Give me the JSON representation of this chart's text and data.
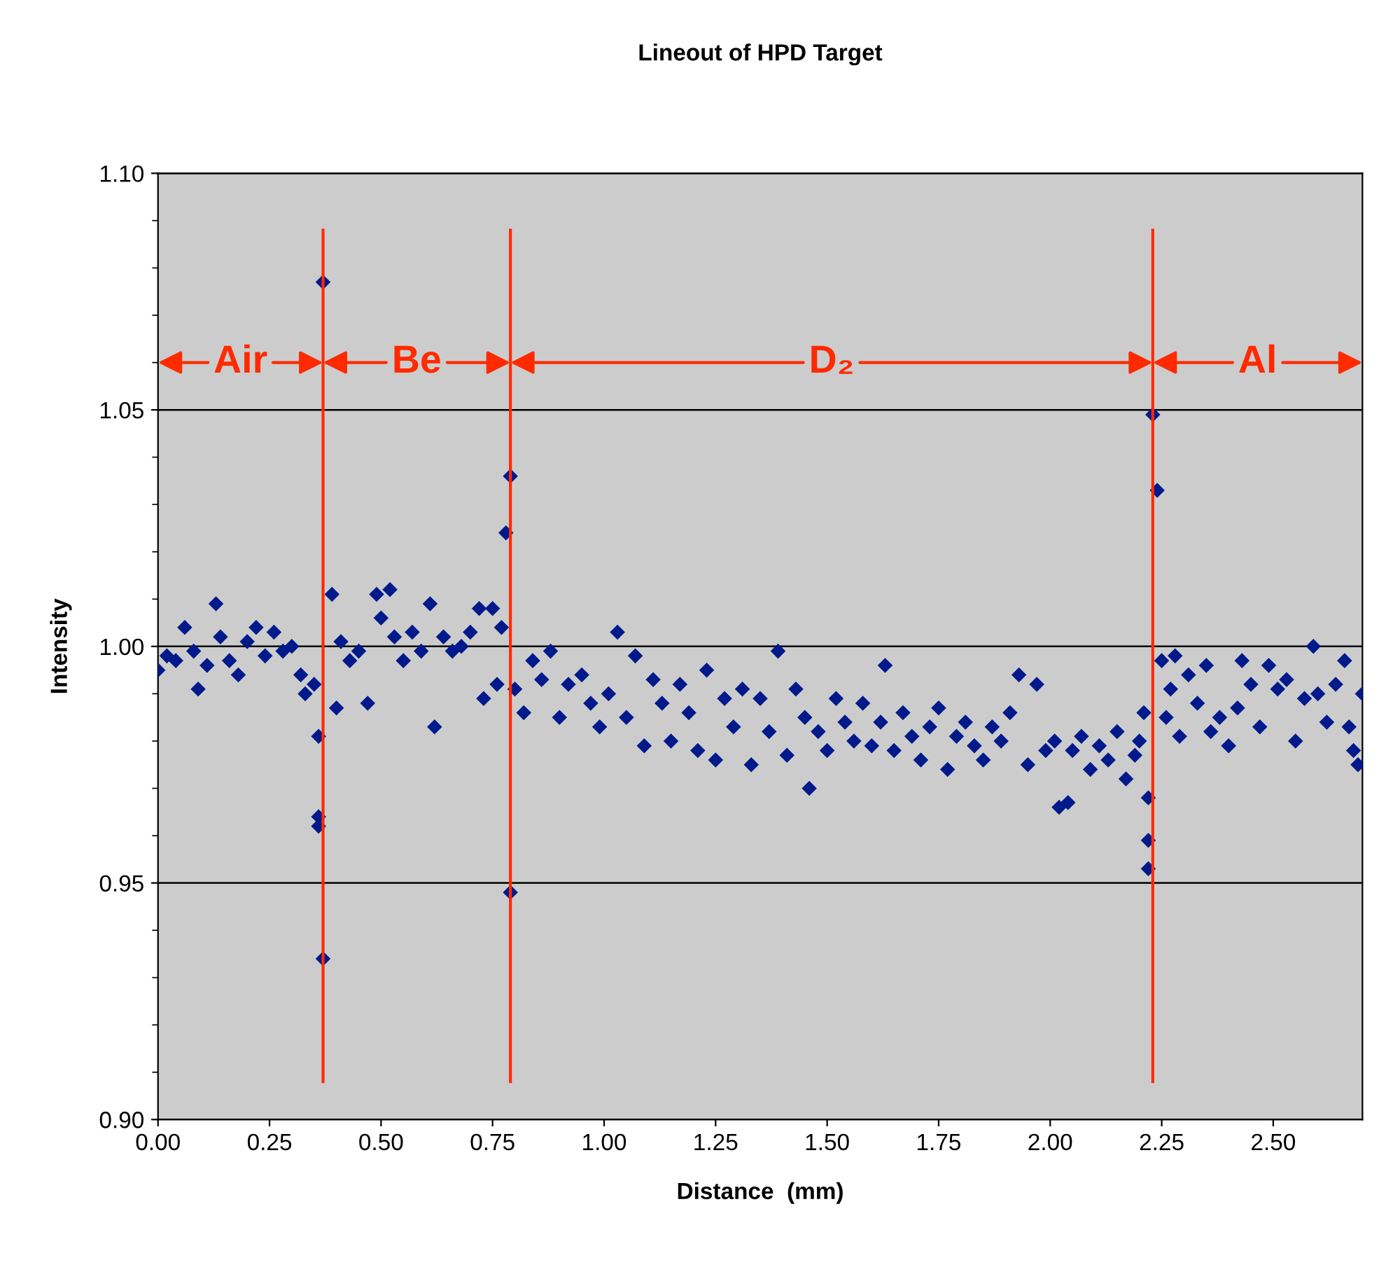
{
  "chart_data": {
    "type": "scatter",
    "title": "Lineout of HPD Target",
    "xlabel": "Distance  (mm)",
    "ylabel": "Intensity",
    "marker": "diamond",
    "grid": "y",
    "xlim": [
      0,
      2.7
    ],
    "xticks": [
      {
        "value": 0,
        "label": "0.00"
      },
      {
        "value": 0.25,
        "label": "0.25"
      },
      {
        "value": 0.5,
        "label": "0.50"
      },
      {
        "value": 0.75,
        "label": "0.75"
      },
      {
        "value": 1.0,
        "label": "1.00"
      },
      {
        "value": 1.25,
        "label": "1.25"
      },
      {
        "value": 1.5,
        "label": "1.50"
      },
      {
        "value": 1.75,
        "label": "1.75"
      },
      {
        "value": 2.0,
        "label": "2.00"
      },
      {
        "value": 2.25,
        "label": "2.25"
      },
      {
        "value": 2.5,
        "label": "2.50"
      }
    ],
    "ylim": [
      0.9,
      1.1
    ],
    "yticks": [
      {
        "value": 0.9,
        "label": "0.90"
      },
      {
        "value": 0.95,
        "label": "0.95"
      },
      {
        "value": 1.0,
        "label": "1.00"
      },
      {
        "value": 1.05,
        "label": "1.05"
      },
      {
        "value": 1.1,
        "label": "1.10"
      }
    ],
    "ref_lines": [
      {
        "axis": "x",
        "value": 0.37,
        "color": "#ff2a00"
      },
      {
        "axis": "x",
        "value": 0.79,
        "color": "#ff2a00"
      },
      {
        "axis": "x",
        "value": 2.23,
        "color": "#ff2a00"
      }
    ],
    "annotations": [
      {
        "text": "Air",
        "x": 0.37,
        "y": 1.06
      },
      {
        "text": "Be",
        "x": 0.79,
        "y": 1.06
      },
      {
        "text": "D₂",
        "x": 2.23,
        "y": 1.06
      },
      {
        "text": "Al",
        "x": 2.23,
        "y": 1.06
      }
    ],
    "series": [
      {
        "color": "#001a8c",
        "x": [
          0.0,
          0.02,
          0.04,
          0.06,
          0.08,
          0.09,
          0.11,
          0.13,
          0.14,
          0.16,
          0.18,
          0.2,
          0.22,
          0.24,
          0.26,
          0.28,
          0.3,
          0.32,
          0.33,
          0.35,
          0.36,
          0.36,
          0.36,
          0.37,
          0.37,
          0.39,
          0.4,
          0.41,
          0.43,
          0.45,
          0.47,
          0.49,
          0.5,
          0.52,
          0.53,
          0.55,
          0.57,
          0.59,
          0.61,
          0.62,
          0.64,
          0.66,
          0.68,
          0.7,
          0.72,
          0.73,
          0.75,
          0.76,
          0.77,
          0.78,
          0.79,
          0.79,
          0.8,
          0.82,
          0.84,
          0.86,
          0.88,
          0.9,
          0.92,
          0.95,
          0.97,
          0.99,
          1.01,
          1.03,
          1.05,
          1.07,
          1.09,
          1.11,
          1.13,
          1.15,
          1.17,
          1.19,
          1.21,
          1.23,
          1.25,
          1.27,
          1.29,
          1.31,
          1.33,
          1.35,
          1.37,
          1.39,
          1.41,
          1.43,
          1.45,
          1.46,
          1.48,
          1.5,
          1.52,
          1.54,
          1.56,
          1.58,
          1.6,
          1.62,
          1.63,
          1.65,
          1.67,
          1.69,
          1.71,
          1.73,
          1.75,
          1.77,
          1.79,
          1.81,
          1.83,
          1.85,
          1.87,
          1.89,
          1.91,
          1.93,
          1.95,
          1.97,
          1.99,
          2.01,
          2.02,
          2.04,
          2.05,
          2.07,
          2.09,
          2.11,
          2.13,
          2.15,
          2.17,
          2.19,
          2.2,
          2.21,
          2.22,
          2.22,
          2.22,
          2.23,
          2.24,
          2.25,
          2.26,
          2.27,
          2.28,
          2.29,
          2.31,
          2.33,
          2.35,
          2.36,
          2.38,
          2.4,
          2.42,
          2.43,
          2.45,
          2.47,
          2.49,
          2.51,
          2.53,
          2.55,
          2.57,
          2.59,
          2.6,
          2.62,
          2.64,
          2.66,
          2.67,
          2.68,
          2.69,
          2.7
        ],
        "values": [
          0.995,
          0.998,
          0.997,
          1.004,
          0.999,
          0.991,
          0.996,
          1.009,
          1.002,
          0.997,
          0.994,
          1.001,
          1.004,
          0.998,
          1.003,
          0.999,
          1.0,
          0.994,
          0.99,
          0.992,
          0.981,
          0.964,
          0.962,
          0.934,
          1.077,
          1.011,
          0.987,
          1.001,
          0.997,
          0.999,
          0.988,
          1.011,
          1.006,
          1.012,
          1.002,
          0.997,
          1.003,
          0.999,
          1.009,
          0.983,
          1.002,
          0.999,
          1.0,
          1.003,
          1.008,
          0.989,
          1.008,
          0.992,
          1.004,
          1.024,
          1.036,
          0.948,
          0.991,
          0.986,
          0.997,
          0.993,
          0.999,
          0.985,
          0.992,
          0.994,
          0.988,
          0.983,
          0.99,
          1.003,
          0.985,
          0.998,
          0.979,
          0.993,
          0.988,
          0.98,
          0.992,
          0.986,
          0.978,
          0.995,
          0.976,
          0.989,
          0.983,
          0.991,
          0.975,
          0.989,
          0.982,
          0.999,
          0.977,
          0.991,
          0.985,
          0.97,
          0.982,
          0.978,
          0.989,
          0.984,
          0.98,
          0.988,
          0.979,
          0.984,
          0.996,
          0.978,
          0.986,
          0.981,
          0.976,
          0.983,
          0.987,
          0.974,
          0.981,
          0.984,
          0.979,
          0.976,
          0.983,
          0.98,
          0.986,
          0.994,
          0.975,
          0.992,
          0.978,
          0.98,
          0.966,
          0.967,
          0.978,
          0.981,
          0.974,
          0.979,
          0.976,
          0.982,
          0.972,
          0.977,
          0.98,
          0.986,
          0.968,
          0.959,
          0.953,
          1.049,
          1.033,
          0.997,
          0.985,
          0.991,
          0.998,
          0.981,
          0.994,
          0.988,
          0.996,
          0.982,
          0.985,
          0.979,
          0.987,
          0.997,
          0.992,
          0.983,
          0.996,
          0.991,
          0.993,
          0.98,
          0.989,
          1.0,
          0.99,
          0.984,
          0.992,
          0.997,
          0.983,
          0.978,
          0.975,
          0.99
        ]
      }
    ]
  }
}
